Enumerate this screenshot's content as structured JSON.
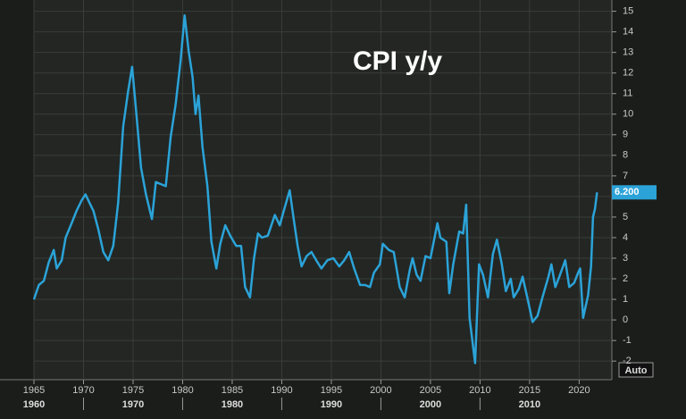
{
  "chart_data": {
    "type": "line",
    "title": "CPI y/y",
    "x": [
      1965.0,
      1965.5,
      1966.0,
      1966.5,
      1967.0,
      1967.3,
      1967.8,
      1968.2,
      1968.8,
      1969.3,
      1969.8,
      1970.2,
      1970.6,
      1971.0,
      1971.5,
      1972.0,
      1972.5,
      1973.0,
      1973.5,
      1974.0,
      1974.5,
      1974.9,
      1975.3,
      1975.8,
      1976.3,
      1976.9,
      1977.3,
      1977.8,
      1978.3,
      1978.8,
      1979.3,
      1979.8,
      1980.2,
      1980.6,
      1981.0,
      1981.3,
      1981.6,
      1982.0,
      1982.5,
      1982.9,
      1983.4,
      1983.8,
      1984.3,
      1984.8,
      1985.4,
      1985.9,
      1986.3,
      1986.8,
      1987.2,
      1987.6,
      1988.0,
      1988.6,
      1989.3,
      1989.8,
      1990.2,
      1990.8,
      1991.2,
      1991.6,
      1992.0,
      1992.5,
      1993.0,
      1993.6,
      1994.0,
      1994.6,
      1995.2,
      1995.8,
      1996.3,
      1996.8,
      1997.3,
      1997.9,
      1998.4,
      1998.9,
      1999.3,
      1999.9,
      2000.2,
      2000.8,
      2001.3,
      2001.9,
      2002.4,
      2002.9,
      2003.2,
      2003.6,
      2004.0,
      2004.5,
      2005.0,
      2005.7,
      2006.0,
      2006.6,
      2006.9,
      2007.3,
      2007.9,
      2008.3,
      2008.6,
      2008.95,
      2009.5,
      2009.9,
      2010.3,
      2010.8,
      2011.3,
      2011.7,
      2012.2,
      2012.6,
      2013.1,
      2013.4,
      2013.9,
      2014.3,
      2014.9,
      2015.3,
      2015.8,
      2016.3,
      2016.9,
      2017.2,
      2017.6,
      2018.0,
      2018.6,
      2019.0,
      2019.5,
      2019.9,
      2020.1,
      2020.4,
      2020.9,
      2021.2,
      2021.4,
      2021.6,
      2021.8
    ],
    "values": [
      1.0,
      1.7,
      1.9,
      2.8,
      3.4,
      2.5,
      2.9,
      4.0,
      4.7,
      5.3,
      5.8,
      6.1,
      5.7,
      5.3,
      4.4,
      3.3,
      2.9,
      3.6,
      5.7,
      9.4,
      11.1,
      12.3,
      10.2,
      7.4,
      6.1,
      4.9,
      6.7,
      6.6,
      6.5,
      8.9,
      10.5,
      12.6,
      14.8,
      13.1,
      11.8,
      10.0,
      10.9,
      8.4,
      6.5,
      3.8,
      2.5,
      3.7,
      4.6,
      4.1,
      3.6,
      3.6,
      1.6,
      1.1,
      3.0,
      4.2,
      4.0,
      4.1,
      5.1,
      4.6,
      5.3,
      6.3,
      4.9,
      3.6,
      2.6,
      3.1,
      3.3,
      2.8,
      2.5,
      2.9,
      3.0,
      2.6,
      2.9,
      3.3,
      2.5,
      1.7,
      1.7,
      1.6,
      2.3,
      2.7,
      3.7,
      3.4,
      3.3,
      1.6,
      1.1,
      2.4,
      3.0,
      2.2,
      1.9,
      3.1,
      3.0,
      4.7,
      4.0,
      3.8,
      1.3,
      2.7,
      4.3,
      4.2,
      5.6,
      0.1,
      -2.1,
      2.7,
      2.2,
      1.1,
      3.2,
      3.9,
      2.7,
      1.4,
      2.0,
      1.1,
      1.5,
      2.1,
      0.8,
      -0.1,
      0.2,
      1.1,
      2.1,
      2.7,
      1.6,
      2.1,
      2.9,
      1.6,
      1.8,
      2.3,
      2.5,
      0.1,
      1.2,
      2.6,
      5.0,
      5.4,
      6.2
    ],
    "color": "#2ba3d8",
    "last_label": {
      "value": 6.2,
      "label": "6.200"
    },
    "xlim": [
      1965,
      2023.3
    ],
    "xticks": [
      1965,
      1970,
      1975,
      1980,
      1985,
      1990,
      1995,
      2000,
      2005,
      2010,
      2015,
      2020
    ],
    "decades": [
      1960,
      1970,
      1980,
      1990,
      2000,
      2010
    ],
    "ylim": [
      -2.6,
      15.2
    ],
    "yticks": [
      -2,
      -1,
      0,
      1,
      2,
      3,
      4,
      5,
      6,
      7,
      8,
      9,
      10,
      11,
      12,
      13,
      14,
      15
    ],
    "grid": true,
    "axis_mode": "Auto"
  }
}
